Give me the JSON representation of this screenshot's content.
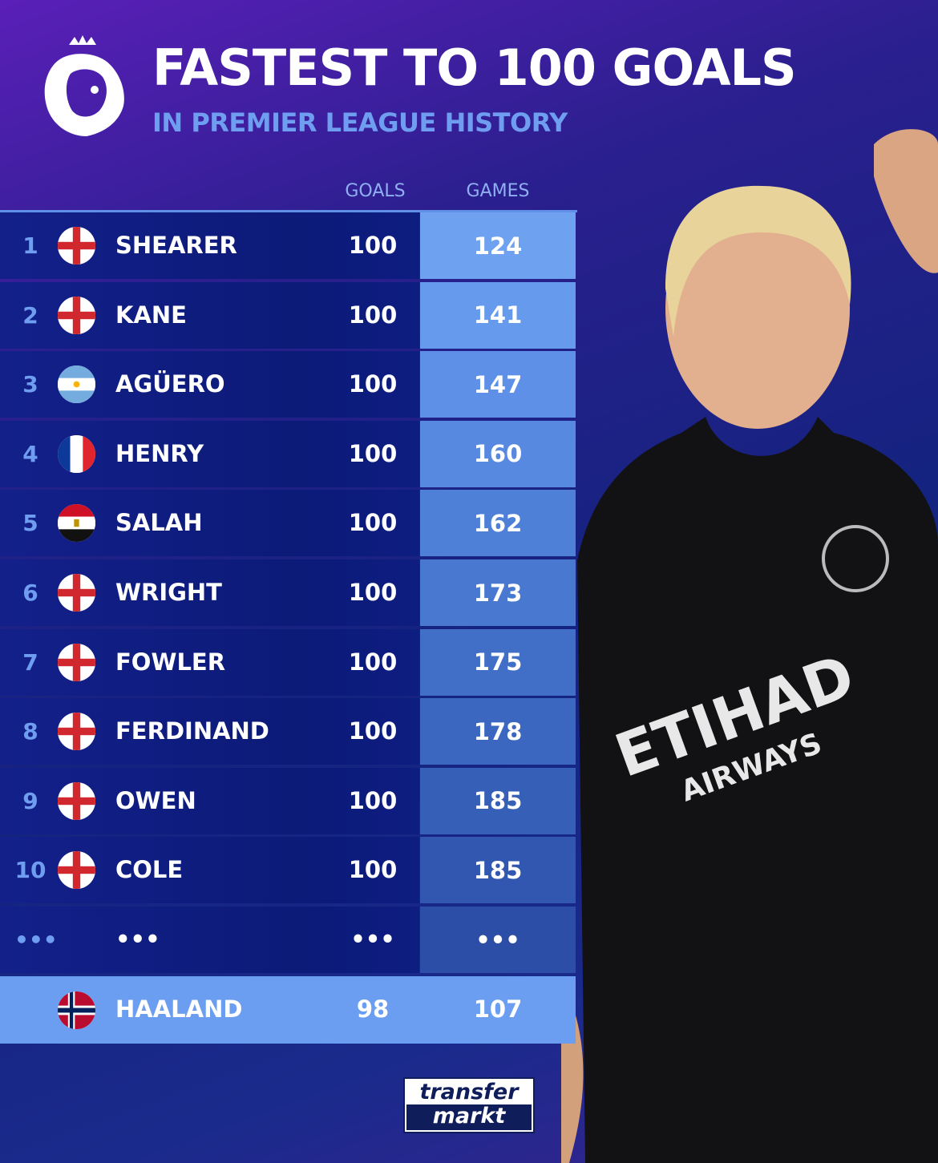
{
  "header": {
    "title": "FASTEST TO 100 GOALS",
    "subtitle": "IN PREMIER LEAGUE HISTORY",
    "logo": "premier-league-lion-logo"
  },
  "columns": {
    "goals": "GOALS",
    "games": "GAMES"
  },
  "rows": [
    {
      "rank": "1",
      "flag": "england",
      "name": "SHEARER",
      "goals": "100",
      "games": "124"
    },
    {
      "rank": "2",
      "flag": "england",
      "name": "KANE",
      "goals": "100",
      "games": "141"
    },
    {
      "rank": "3",
      "flag": "argentina",
      "name": "AGÜERO",
      "goals": "100",
      "games": "147"
    },
    {
      "rank": "4",
      "flag": "france",
      "name": "HENRY",
      "goals": "100",
      "games": "160"
    },
    {
      "rank": "5",
      "flag": "egypt",
      "name": "SALAH",
      "goals": "100",
      "games": "162"
    },
    {
      "rank": "6",
      "flag": "england",
      "name": "WRIGHT",
      "goals": "100",
      "games": "173"
    },
    {
      "rank": "7",
      "flag": "england",
      "name": "FOWLER",
      "goals": "100",
      "games": "175"
    },
    {
      "rank": "8",
      "flag": "england",
      "name": "FERDINAND",
      "goals": "100",
      "games": "178"
    },
    {
      "rank": "9",
      "flag": "england",
      "name": "OWEN",
      "goals": "100",
      "games": "185"
    },
    {
      "rank": "10",
      "flag": "england",
      "name": "COLE",
      "goals": "100",
      "games": "185"
    },
    {
      "rank": "•••",
      "flag": "",
      "name": "•••",
      "goals": "•••",
      "games": "•••"
    }
  ],
  "highlight": {
    "flag": "norway",
    "name": "HAALAND",
    "goals": "98",
    "games": "107"
  },
  "sponsor": {
    "line1": "ETIHAD",
    "line2": "AIRWAYS"
  },
  "brand": {
    "line1": "transfer",
    "line2": "markt"
  },
  "colors": {
    "accent": "#6f9df0",
    "highlight": "#6b9ef0",
    "games_top": "#6ea1ef",
    "games_bottom": "#2e4aa8"
  }
}
